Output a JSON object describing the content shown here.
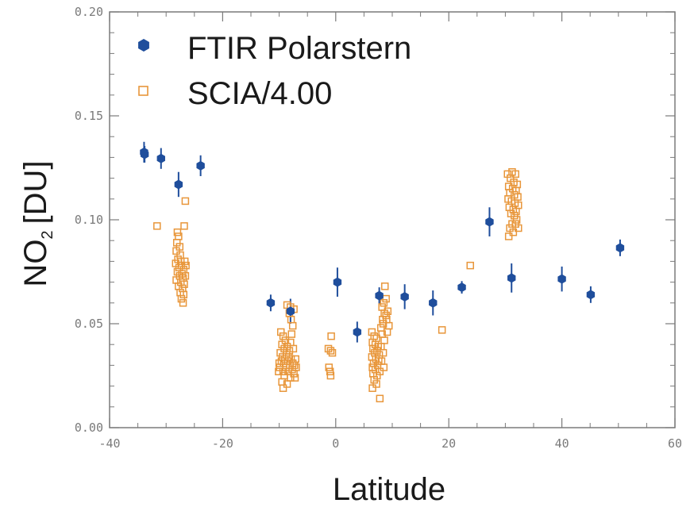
{
  "chart_data": {
    "type": "scatter",
    "xlabel": "Latitude",
    "ylabel": "NO",
    "ylabel_sub": "2",
    "ylabel_unit": "[DU]",
    "xlim": [
      -40,
      60
    ],
    "ylim": [
      0.0,
      0.2
    ],
    "x_ticks": [
      -40,
      -20,
      0,
      20,
      40,
      60
    ],
    "x_tick_labels": [
      "-40",
      "-20",
      "0",
      "20",
      "40",
      "60"
    ],
    "y_ticks": [
      0.0,
      0.05,
      0.1,
      0.15,
      0.2
    ],
    "y_tick_labels": [
      "0.00",
      "0.05",
      "0.10",
      "0.15",
      "0.20"
    ],
    "legend_position": "top-left",
    "grid": false,
    "series": [
      {
        "name": "FTIR Polarstern",
        "marker": "filled-hexagon",
        "color": "#1f4e9c",
        "error_bars": true,
        "points": [
          {
            "x": -33.9,
            "y": 0.1325,
            "err": 0.005
          },
          {
            "x": -33.8,
            "y": 0.1315,
            "err": 0.004
          },
          {
            "x": -30.9,
            "y": 0.1295,
            "err": 0.005
          },
          {
            "x": -27.8,
            "y": 0.117,
            "err": 0.006
          },
          {
            "x": -23.9,
            "y": 0.126,
            "err": 0.005
          },
          {
            "x": -11.5,
            "y": 0.06,
            "err": 0.004
          },
          {
            "x": -8.0,
            "y": 0.056,
            "err": 0.006
          },
          {
            "x": 0.3,
            "y": 0.07,
            "err": 0.007
          },
          {
            "x": 3.8,
            "y": 0.046,
            "err": 0.005
          },
          {
            "x": 7.7,
            "y": 0.0635,
            "err": 0.004
          },
          {
            "x": 12.2,
            "y": 0.063,
            "err": 0.006
          },
          {
            "x": 17.2,
            "y": 0.06,
            "err": 0.006
          },
          {
            "x": 22.3,
            "y": 0.0675,
            "err": 0.003
          },
          {
            "x": 27.2,
            "y": 0.099,
            "err": 0.007
          },
          {
            "x": 31.1,
            "y": 0.072,
            "err": 0.007
          },
          {
            "x": 40.0,
            "y": 0.0715,
            "err": 0.006
          },
          {
            "x": 45.1,
            "y": 0.064,
            "err": 0.004
          },
          {
            "x": 50.3,
            "y": 0.0865,
            "err": 0.004
          }
        ]
      },
      {
        "name": "SCIA/4.00",
        "marker": "open-square",
        "color": "#e8963a",
        "points": [
          {
            "x": -31.6,
            "y": 0.097
          },
          {
            "x": -28.0,
            "y": 0.094
          },
          {
            "x": -27.8,
            "y": 0.092
          },
          {
            "x": -28.1,
            "y": 0.089
          },
          {
            "x": -27.6,
            "y": 0.087
          },
          {
            "x": -28.2,
            "y": 0.085
          },
          {
            "x": -27.5,
            "y": 0.083
          },
          {
            "x": -27.9,
            "y": 0.081
          },
          {
            "x": -27.4,
            "y": 0.08
          },
          {
            "x": -28.3,
            "y": 0.079
          },
          {
            "x": -27.3,
            "y": 0.078
          },
          {
            "x": -27.7,
            "y": 0.077
          },
          {
            "x": -26.9,
            "y": 0.076
          },
          {
            "x": -28.0,
            "y": 0.075
          },
          {
            "x": -27.2,
            "y": 0.074
          },
          {
            "x": -27.6,
            "y": 0.073
          },
          {
            "x": -27.0,
            "y": 0.072
          },
          {
            "x": -28.2,
            "y": 0.071
          },
          {
            "x": -27.4,
            "y": 0.07
          },
          {
            "x": -26.8,
            "y": 0.069
          },
          {
            "x": -27.8,
            "y": 0.068
          },
          {
            "x": -27.1,
            "y": 0.067
          },
          {
            "x": -27.5,
            "y": 0.065
          },
          {
            "x": -26.9,
            "y": 0.064
          },
          {
            "x": -27.3,
            "y": 0.062
          },
          {
            "x": -27.0,
            "y": 0.06
          },
          {
            "x": -26.6,
            "y": 0.109
          },
          {
            "x": -26.8,
            "y": 0.097
          },
          {
            "x": -26.7,
            "y": 0.08
          },
          {
            "x": -26.5,
            "y": 0.078
          },
          {
            "x": -26.6,
            "y": 0.073
          },
          {
            "x": -9.7,
            "y": 0.046
          },
          {
            "x": -9.3,
            "y": 0.044
          },
          {
            "x": -8.9,
            "y": 0.042
          },
          {
            "x": -9.5,
            "y": 0.04
          },
          {
            "x": -8.6,
            "y": 0.039
          },
          {
            "x": -9.1,
            "y": 0.038
          },
          {
            "x": -8.2,
            "y": 0.037
          },
          {
            "x": -9.8,
            "y": 0.036
          },
          {
            "x": -8.7,
            "y": 0.035
          },
          {
            "x": -9.4,
            "y": 0.034
          },
          {
            "x": -8.3,
            "y": 0.034
          },
          {
            "x": -9.0,
            "y": 0.033
          },
          {
            "x": -7.9,
            "y": 0.033
          },
          {
            "x": -9.6,
            "y": 0.032
          },
          {
            "x": -8.5,
            "y": 0.032
          },
          {
            "x": -7.6,
            "y": 0.031
          },
          {
            "x": -9.2,
            "y": 0.031
          },
          {
            "x": -8.1,
            "y": 0.03
          },
          {
            "x": -7.3,
            "y": 0.03
          },
          {
            "x": -9.9,
            "y": 0.029
          },
          {
            "x": -8.8,
            "y": 0.029
          },
          {
            "x": -7.7,
            "y": 0.028
          },
          {
            "x": -9.3,
            "y": 0.027
          },
          {
            "x": -8.4,
            "y": 0.027
          },
          {
            "x": -7.4,
            "y": 0.026
          },
          {
            "x": -9.1,
            "y": 0.025
          },
          {
            "x": -8.0,
            "y": 0.024
          },
          {
            "x": -7.2,
            "y": 0.024
          },
          {
            "x": -9.5,
            "y": 0.022
          },
          {
            "x": -8.6,
            "y": 0.021
          },
          {
            "x": -9.3,
            "y": 0.019
          },
          {
            "x": -7.0,
            "y": 0.029
          },
          {
            "x": -7.1,
            "y": 0.033
          },
          {
            "x": -7.5,
            "y": 0.038
          },
          {
            "x": -8.0,
            "y": 0.041
          },
          {
            "x": -7.8,
            "y": 0.045
          },
          {
            "x": -7.6,
            "y": 0.049
          },
          {
            "x": -7.9,
            "y": 0.052
          },
          {
            "x": -8.2,
            "y": 0.055
          },
          {
            "x": -8.0,
            "y": 0.058
          },
          {
            "x": -8.6,
            "y": 0.059
          },
          {
            "x": -7.4,
            "y": 0.057
          },
          {
            "x": -10.0,
            "y": 0.031
          },
          {
            "x": -10.1,
            "y": 0.027
          },
          {
            "x": -1.3,
            "y": 0.038
          },
          {
            "x": -0.9,
            "y": 0.037
          },
          {
            "x": -0.6,
            "y": 0.036
          },
          {
            "x": -0.8,
            "y": 0.044
          },
          {
            "x": -1.2,
            "y": 0.029
          },
          {
            "x": -1.0,
            "y": 0.027
          },
          {
            "x": -0.9,
            "y": 0.025
          },
          {
            "x": 6.4,
            "y": 0.046
          },
          {
            "x": 6.8,
            "y": 0.044
          },
          {
            "x": 7.2,
            "y": 0.043
          },
          {
            "x": 6.5,
            "y": 0.041
          },
          {
            "x": 7.0,
            "y": 0.04
          },
          {
            "x": 7.5,
            "y": 0.039
          },
          {
            "x": 6.6,
            "y": 0.038
          },
          {
            "x": 7.3,
            "y": 0.037
          },
          {
            "x": 6.9,
            "y": 0.036
          },
          {
            "x": 7.7,
            "y": 0.035
          },
          {
            "x": 6.4,
            "y": 0.034
          },
          {
            "x": 7.1,
            "y": 0.033
          },
          {
            "x": 7.6,
            "y": 0.032
          },
          {
            "x": 6.7,
            "y": 0.031
          },
          {
            "x": 7.4,
            "y": 0.03
          },
          {
            "x": 6.5,
            "y": 0.029
          },
          {
            "x": 7.0,
            "y": 0.028
          },
          {
            "x": 7.8,
            "y": 0.027
          },
          {
            "x": 6.6,
            "y": 0.026
          },
          {
            "x": 7.3,
            "y": 0.025
          },
          {
            "x": 6.8,
            "y": 0.023
          },
          {
            "x": 7.2,
            "y": 0.021
          },
          {
            "x": 6.5,
            "y": 0.019
          },
          {
            "x": 7.8,
            "y": 0.014
          },
          {
            "x": 8.0,
            "y": 0.048
          },
          {
            "x": 8.3,
            "y": 0.052
          },
          {
            "x": 8.6,
            "y": 0.055
          },
          {
            "x": 8.2,
            "y": 0.058
          },
          {
            "x": 8.5,
            "y": 0.06
          },
          {
            "x": 8.9,
            "y": 0.062
          },
          {
            "x": 8.7,
            "y": 0.068
          },
          {
            "x": 8.4,
            "y": 0.05
          },
          {
            "x": 8.9,
            "y": 0.054
          },
          {
            "x": 9.2,
            "y": 0.056
          },
          {
            "x": 9.0,
            "y": 0.052
          },
          {
            "x": 9.4,
            "y": 0.049
          },
          {
            "x": 8.2,
            "y": 0.045
          },
          {
            "x": 8.6,
            "y": 0.042
          },
          {
            "x": 8.0,
            "y": 0.039
          },
          {
            "x": 8.4,
            "y": 0.036
          },
          {
            "x": 8.1,
            "y": 0.032
          },
          {
            "x": 8.5,
            "y": 0.029
          },
          {
            "x": 9.1,
            "y": 0.046
          },
          {
            "x": 18.8,
            "y": 0.047
          },
          {
            "x": 23.8,
            "y": 0.078
          },
          {
            "x": 30.4,
            "y": 0.122
          },
          {
            "x": 31.2,
            "y": 0.123
          },
          {
            "x": 31.8,
            "y": 0.122
          },
          {
            "x": 30.9,
            "y": 0.12
          },
          {
            "x": 31.5,
            "y": 0.118
          },
          {
            "x": 32.1,
            "y": 0.117
          },
          {
            "x": 30.6,
            "y": 0.116
          },
          {
            "x": 31.3,
            "y": 0.115
          },
          {
            "x": 31.9,
            "y": 0.114
          },
          {
            "x": 30.8,
            "y": 0.113
          },
          {
            "x": 31.6,
            "y": 0.112
          },
          {
            "x": 32.2,
            "y": 0.111
          },
          {
            "x": 30.5,
            "y": 0.11
          },
          {
            "x": 31.1,
            "y": 0.109
          },
          {
            "x": 31.7,
            "y": 0.108
          },
          {
            "x": 32.3,
            "y": 0.107
          },
          {
            "x": 30.7,
            "y": 0.106
          },
          {
            "x": 31.4,
            "y": 0.105
          },
          {
            "x": 31.9,
            "y": 0.104
          },
          {
            "x": 31.0,
            "y": 0.103
          },
          {
            "x": 31.6,
            "y": 0.102
          },
          {
            "x": 32.0,
            "y": 0.1
          },
          {
            "x": 31.2,
            "y": 0.098
          },
          {
            "x": 31.8,
            "y": 0.098
          },
          {
            "x": 30.8,
            "y": 0.096
          },
          {
            "x": 30.6,
            "y": 0.092
          },
          {
            "x": 32.3,
            "y": 0.096
          },
          {
            "x": 31.4,
            "y": 0.094
          }
        ]
      }
    ]
  }
}
